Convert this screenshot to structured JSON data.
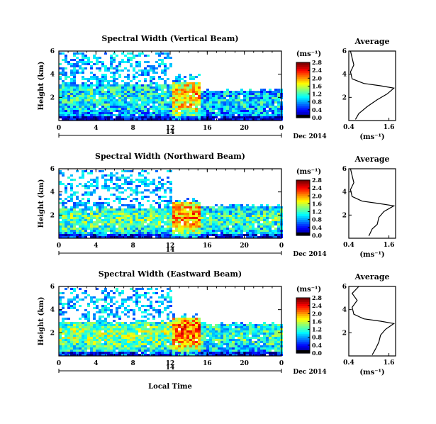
{
  "figure": {
    "xlabel": "Local Time",
    "date_label": "Dec 2014",
    "day_label": "14",
    "avg_xlabel": "(ms⁻¹)",
    "colorbar_unit": "(ms⁻¹)"
  },
  "chart_data": [
    {
      "type": "heatmap",
      "title": "Spectral Width (Vertical Beam)",
      "ylabel": "Height (km)",
      "x_ticks": [
        "0",
        "4",
        "8",
        "12",
        "16",
        "20",
        "0"
      ],
      "y_ticks": [
        "2",
        "4",
        "6"
      ],
      "xlim": [
        0,
        24
      ],
      "ylim": [
        0,
        6
      ],
      "colorbar_ticks": [
        "0.0",
        "0.4",
        "0.8",
        "1.2",
        "1.6",
        "2.0",
        "2.4",
        "2.8"
      ],
      "clim": [
        0,
        2.8
      ],
      "bands": [
        {
          "x0": 0,
          "x1": 12,
          "top": 3.2,
          "sparse_top": 6.0,
          "level": 0.9
        },
        {
          "x0": 12,
          "x1": 15,
          "top": 3.4,
          "sparse_top": 4.1,
          "level": 1.6
        },
        {
          "x0": 15,
          "x1": 24,
          "top": 2.6,
          "sparse_top": 2.8,
          "level": 0.8
        }
      ],
      "average": {
        "title": "Average",
        "x_ticks": [
          "0.4",
          "1.6"
        ],
        "y_ticks": [
          "2",
          "4",
          "6"
        ],
        "xlim": [
          0.4,
          1.8
        ],
        "ylim": [
          0,
          6
        ],
        "x": [
          0.6,
          0.7,
          0.95,
          1.25,
          1.55,
          1.75,
          1.35,
          0.85,
          0.5,
          0.45,
          0.55,
          0.5,
          0.45
        ],
        "y": [
          0.1,
          0.6,
          1.2,
          1.8,
          2.3,
          2.8,
          3.0,
          3.2,
          3.6,
          4.2,
          4.8,
          5.4,
          6.0
        ]
      }
    },
    {
      "type": "heatmap",
      "title": "Spectral Width (Northward Beam)",
      "ylabel": "Height (km)",
      "x_ticks": [
        "0",
        "4",
        "8",
        "12",
        "16",
        "20",
        "0"
      ],
      "y_ticks": [
        "2",
        "4",
        "6"
      ],
      "xlim": [
        0,
        24
      ],
      "ylim": [
        0,
        6
      ],
      "colorbar_ticks": [
        "0.0",
        "0.4",
        "0.8",
        "1.2",
        "1.6",
        "2.0",
        "2.4",
        "2.8"
      ],
      "clim": [
        0,
        2.8
      ],
      "bands": [
        {
          "x0": 0,
          "x1": 12,
          "top": 2.6,
          "sparse_top": 6.0,
          "level": 1.1
        },
        {
          "x0": 12,
          "x1": 15,
          "top": 3.2,
          "sparse_top": 3.6,
          "level": 1.7
        },
        {
          "x0": 15,
          "x1": 24,
          "top": 2.8,
          "sparse_top": 3.0,
          "level": 1.0
        }
      ],
      "average": {
        "title": "Average",
        "x_ticks": [
          "0.4",
          "1.6"
        ],
        "y_ticks": [
          "2",
          "4",
          "6"
        ],
        "xlim": [
          0.4,
          1.8
        ],
        "ylim": [
          0,
          6
        ],
        "x": [
          1.0,
          1.1,
          1.25,
          1.3,
          1.45,
          1.75,
          1.3,
          0.8,
          0.5,
          0.45,
          0.55,
          0.5,
          0.45
        ],
        "y": [
          0.2,
          0.8,
          1.2,
          1.8,
          2.3,
          2.8,
          3.0,
          3.2,
          3.6,
          4.2,
          4.8,
          5.4,
          6.0
        ]
      }
    },
    {
      "type": "heatmap",
      "title": "Spectral Width (Eastward Beam)",
      "ylabel": "Height (km)",
      "x_ticks": [
        "0",
        "4",
        "8",
        "12",
        "16",
        "20",
        "0"
      ],
      "y_ticks": [
        "2",
        "4",
        "6"
      ],
      "xlim": [
        0,
        24
      ],
      "ylim": [
        0,
        6
      ],
      "colorbar_ticks": [
        "0.0",
        "0.4",
        "0.8",
        "1.2",
        "1.6",
        "2.0",
        "2.4",
        "2.8"
      ],
      "clim": [
        0,
        2.8
      ],
      "bands": [
        {
          "x0": 0,
          "x1": 12,
          "top": 3.0,
          "sparse_top": 6.0,
          "level": 1.2
        },
        {
          "x0": 12,
          "x1": 15,
          "top": 3.4,
          "sparse_top": 3.8,
          "level": 1.8
        },
        {
          "x0": 15,
          "x1": 24,
          "top": 2.8,
          "sparse_top": 3.0,
          "level": 1.0
        }
      ],
      "average": {
        "title": "Average",
        "x_ticks": [
          "0.4",
          "1.6"
        ],
        "y_ticks": [
          "2",
          "4",
          "6"
        ],
        "xlim": [
          0.4,
          1.8
        ],
        "ylim": [
          0,
          6
        ],
        "x": [
          1.1,
          1.2,
          1.3,
          1.35,
          1.5,
          1.75,
          1.35,
          0.85,
          0.55,
          0.5,
          0.65,
          0.5,
          0.7
        ],
        "y": [
          0.1,
          0.6,
          1.2,
          1.8,
          2.3,
          2.8,
          3.0,
          3.2,
          3.6,
          4.2,
          4.8,
          5.4,
          6.0
        ]
      }
    }
  ]
}
